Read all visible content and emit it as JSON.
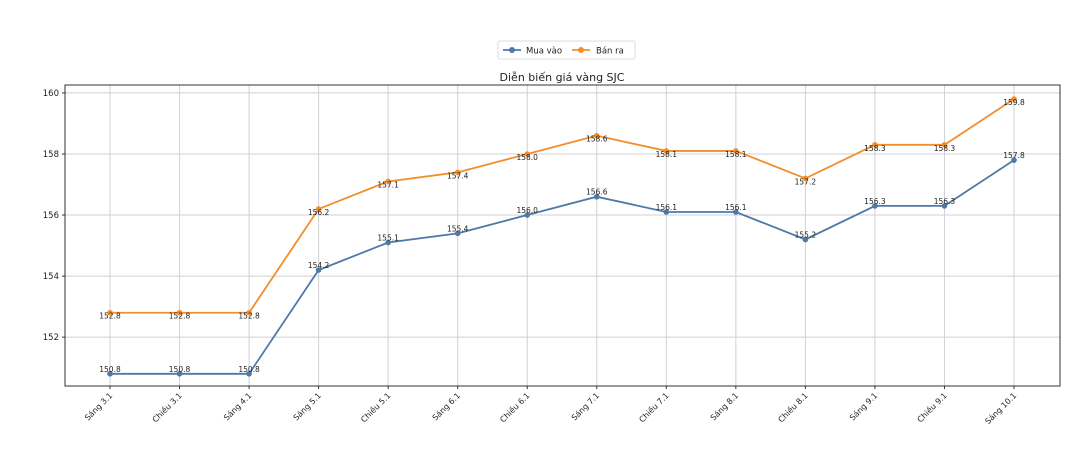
{
  "chart_data": {
    "type": "line",
    "title": "Diễn biến giá vàng SJC",
    "xlabel": "",
    "ylabel": "",
    "categories": [
      "Sáng 3.1",
      "Chiều 3.1",
      "Sáng 4.1",
      "Sáng 5.1",
      "Chiều 5.1",
      "Sáng 6.1",
      "Chiều 6.1",
      "Sáng 7.1",
      "Chiều 7.1",
      "Sáng 8.1",
      "Chiều 8.1",
      "Sáng 9.1",
      "Chiều 9.1",
      "Sáng 10.1"
    ],
    "series": [
      {
        "name": "Mua vào",
        "color": "#4e79a7",
        "values": [
          150.8,
          150.8,
          150.8,
          154.2,
          155.1,
          155.4,
          156.0,
          156.6,
          156.1,
          156.1,
          155.2,
          156.3,
          156.3,
          157.8
        ]
      },
      {
        "name": "Bán ra",
        "color": "#f28e2b",
        "values": [
          152.8,
          152.8,
          152.8,
          156.2,
          157.1,
          157.4,
          158.0,
          158.6,
          158.1,
          158.1,
          157.2,
          158.3,
          158.3,
          159.8
        ]
      }
    ],
    "ylim": [
      150.4,
      160.26
    ],
    "yticks": [
      152,
      154,
      156,
      158,
      160
    ],
    "grid": true,
    "legend": "top-center"
  }
}
